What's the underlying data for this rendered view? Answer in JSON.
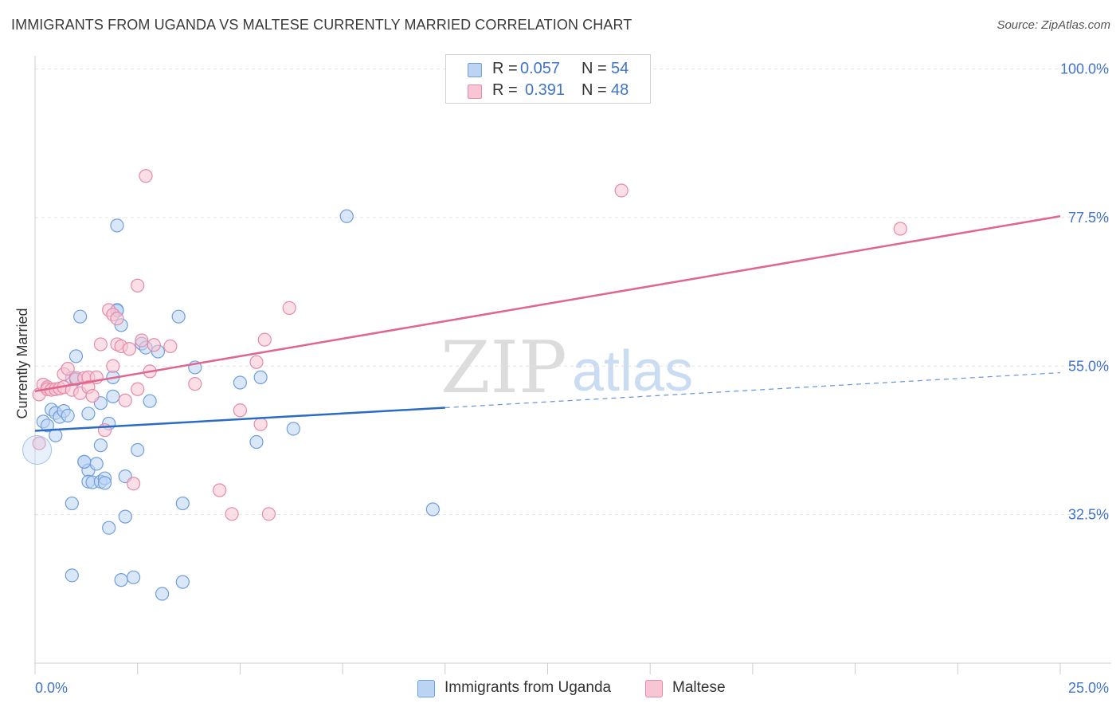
{
  "header": {
    "title": "IMMIGRANTS FROM UGANDA VS MALTESE CURRENTLY MARRIED CORRELATION CHART",
    "source": "Source: ZipAtlas.com"
  },
  "watermark": {
    "zip": "ZIP",
    "atlas": "atlas"
  },
  "colors": {
    "uganda_fill": "#bcd4f4",
    "uganda_stroke": "#6f9fdc",
    "uganda_line": "#2a6bc8",
    "maltese_fill": "#f7c5d3",
    "maltese_stroke": "#e68aa6",
    "maltese_line": "#e0668f",
    "accent_text": "#3f74c9",
    "grid": "#e2e2e2"
  },
  "stats_legend": {
    "rows": [
      {
        "r_label": "R =",
        "r_value": "0.057",
        "n_label": "N =",
        "n_value": "54"
      },
      {
        "r_label": "R =",
        "r_value": "0.391",
        "n_label": "N =",
        "n_value": "48"
      }
    ]
  },
  "legend": {
    "items": [
      {
        "label": "Immigrants from Uganda"
      },
      {
        "label": "Maltese"
      }
    ]
  },
  "chart_data": {
    "type": "scatter",
    "title": "IMMIGRANTS FROM UGANDA VS MALTESE CURRENTLY MARRIED CORRELATION CHART",
    "ylabel": "Currently Married",
    "xlabel": "",
    "x_range": [
      0.0,
      25.0
    ],
    "y_range": [
      10.0,
      102.0
    ],
    "x_tick_labels": [
      "0.0%",
      "25.0%"
    ],
    "y_ticks": [
      100.0,
      77.5,
      55.0,
      32.5
    ],
    "y_tick_labels": [
      "100.0%",
      "77.5%",
      "55.0%",
      "32.5%"
    ],
    "grid": true,
    "legend_position": "bottom-center",
    "series": [
      {
        "name": "Immigrants from Uganda",
        "r": 0.057,
        "n": 54,
        "trend": {
          "x0": 0.0,
          "y0": 45.2,
          "x1": 10.0,
          "y1": 48.7,
          "dashed_to_x": 25.0,
          "dashed_to_y": 54.0
        },
        "points": [
          [
            0.2,
            46.6
          ],
          [
            0.3,
            46.0
          ],
          [
            0.4,
            48.4
          ],
          [
            0.5,
            47.9
          ],
          [
            0.5,
            44.5
          ],
          [
            0.6,
            47.3
          ],
          [
            0.7,
            48.2
          ],
          [
            0.8,
            47.5
          ],
          [
            0.9,
            53.2
          ],
          [
            1.0,
            56.5
          ],
          [
            1.0,
            53.0
          ],
          [
            1.1,
            62.5
          ],
          [
            1.2,
            40.5
          ],
          [
            1.3,
            39.2
          ],
          [
            1.3,
            37.5
          ],
          [
            0.9,
            34.2
          ],
          [
            0.9,
            23.3
          ],
          [
            1.2,
            40.5
          ],
          [
            1.4,
            37.4
          ],
          [
            1.5,
            40.2
          ],
          [
            1.6,
            49.4
          ],
          [
            1.6,
            43.0
          ],
          [
            1.6,
            37.5
          ],
          [
            1.7,
            38.0
          ],
          [
            1.8,
            30.5
          ],
          [
            1.8,
            46.3
          ],
          [
            1.9,
            50.4
          ],
          [
            1.9,
            53.3
          ],
          [
            2.0,
            63.5
          ],
          [
            2.1,
            61.2
          ],
          [
            2.2,
            38.3
          ],
          [
            2.2,
            32.2
          ],
          [
            2.0,
            63.4
          ],
          [
            1.7,
            37.3
          ],
          [
            1.3,
            47.8
          ],
          [
            2.0,
            76.3
          ],
          [
            2.1,
            22.6
          ],
          [
            2.4,
            23.0
          ],
          [
            2.5,
            42.3
          ],
          [
            2.6,
            58.4
          ],
          [
            2.7,
            57.8
          ],
          [
            2.8,
            49.7
          ],
          [
            3.0,
            57.2
          ],
          [
            3.1,
            20.5
          ],
          [
            3.5,
            62.5
          ],
          [
            3.6,
            22.3
          ],
          [
            3.6,
            34.2
          ],
          [
            3.9,
            54.8
          ],
          [
            5.0,
            52.5
          ],
          [
            5.5,
            53.3
          ],
          [
            5.4,
            43.5
          ],
          [
            6.3,
            45.5
          ],
          [
            7.6,
            77.7
          ],
          [
            9.7,
            33.3
          ]
        ]
      },
      {
        "name": "Maltese",
        "r": 0.391,
        "n": 48,
        "trend": {
          "x0": 0.0,
          "y0": 51.2,
          "x1": 25.0,
          "y1": 77.7
        },
        "points": [
          [
            0.1,
            50.7
          ],
          [
            0.2,
            52.2
          ],
          [
            0.3,
            51.8
          ],
          [
            0.3,
            51.5
          ],
          [
            0.4,
            51.4
          ],
          [
            0.5,
            51.5
          ],
          [
            0.6,
            51.6
          ],
          [
            0.7,
            51.8
          ],
          [
            0.7,
            53.8
          ],
          [
            0.8,
            54.6
          ],
          [
            0.9,
            51.4
          ],
          [
            1.0,
            53.2
          ],
          [
            1.1,
            50.9
          ],
          [
            1.2,
            53.2
          ],
          [
            1.3,
            53.3
          ],
          [
            1.3,
            51.8
          ],
          [
            1.4,
            50.5
          ],
          [
            1.5,
            53.3
          ],
          [
            1.6,
            58.3
          ],
          [
            1.7,
            45.3
          ],
          [
            1.8,
            63.5
          ],
          [
            1.9,
            62.8
          ],
          [
            1.9,
            55.0
          ],
          [
            2.0,
            62.2
          ],
          [
            2.0,
            58.3
          ],
          [
            2.1,
            58.0
          ],
          [
            2.2,
            49.8
          ],
          [
            2.3,
            57.6
          ],
          [
            2.4,
            37.2
          ],
          [
            2.5,
            51.5
          ],
          [
            2.5,
            67.2
          ],
          [
            2.6,
            58.9
          ],
          [
            2.7,
            83.8
          ],
          [
            2.8,
            54.2
          ],
          [
            2.9,
            58.2
          ],
          [
            3.3,
            58.0
          ],
          [
            3.9,
            52.3
          ],
          [
            4.5,
            36.2
          ],
          [
            4.8,
            32.6
          ],
          [
            5.0,
            48.3
          ],
          [
            5.4,
            55.6
          ],
          [
            5.5,
            46.2
          ],
          [
            5.6,
            59.0
          ],
          [
            5.7,
            32.6
          ],
          [
            6.2,
            63.8
          ],
          [
            14.3,
            81.6
          ],
          [
            21.1,
            75.8
          ],
          [
            0.1,
            43.3
          ]
        ]
      }
    ]
  }
}
